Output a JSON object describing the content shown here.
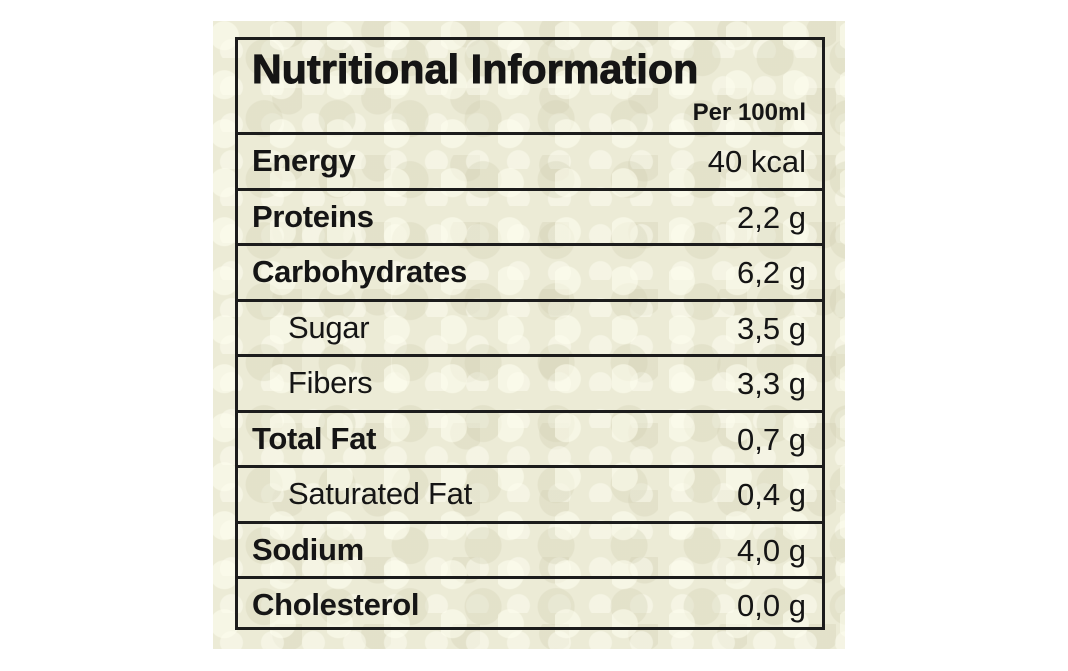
{
  "label": {
    "title": "Nutritional Information",
    "subtitle": "Per 100ml",
    "rows": [
      {
        "name": "Energy",
        "value": "40 kcal",
        "sub": false
      },
      {
        "name": "Proteins",
        "value": "2,2 g",
        "sub": false
      },
      {
        "name": "Carbohydrates",
        "value": "6,2 g",
        "sub": false
      },
      {
        "name": "Sugar",
        "value": "3,5 g",
        "sub": true
      },
      {
        "name": "Fibers",
        "value": "3,3 g",
        "sub": true
      },
      {
        "name": "Total Fat",
        "value": "0,7 g",
        "sub": false
      },
      {
        "name": "Saturated Fat",
        "value": "0,4 g",
        "sub": true
      },
      {
        "name": "Sodium",
        "value": "4,0 g",
        "sub": false
      },
      {
        "name": "Cholesterol",
        "value": "0,0 g",
        "sub": false
      }
    ]
  },
  "colors": {
    "background": "#ecebd6",
    "ink": "#151515"
  }
}
